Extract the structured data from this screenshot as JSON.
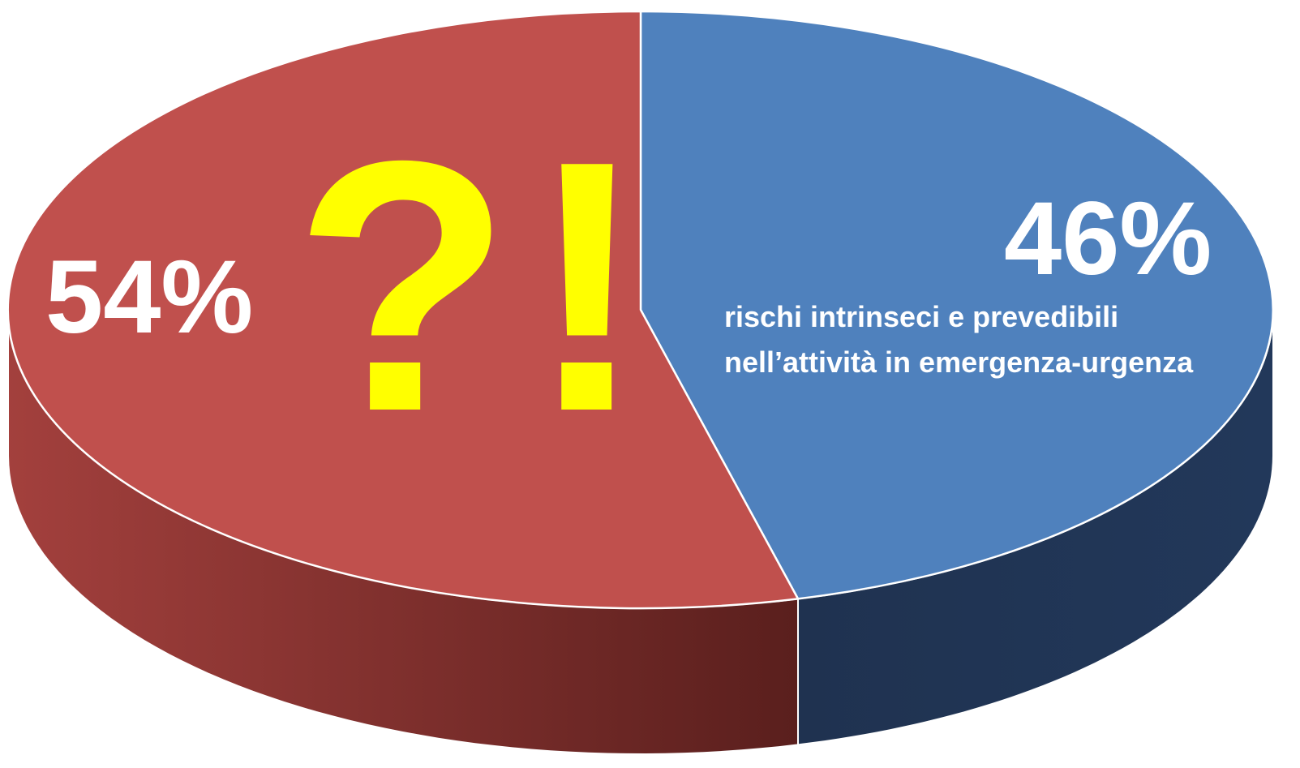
{
  "chart_data": {
    "type": "pie",
    "title": "",
    "style": "3d",
    "slices": [
      {
        "label": "rischi intrinseci e prevedibili nell’attività in emergenza-urgenza",
        "value": 46,
        "value_label": "46%",
        "description_lines": [
          "rischi intrinseci e prevedibili",
          "nell’attività in emergenza-urgenza"
        ],
        "color": "#4f81bd",
        "side_color": "#1f3550"
      },
      {
        "label": "",
        "value": 54,
        "value_label": "54%",
        "description_lines": [],
        "color": "#c0504d",
        "side_color": "#8b3330"
      }
    ],
    "annotations": [
      {
        "text": "?!",
        "color": "#ffff00"
      }
    ]
  }
}
